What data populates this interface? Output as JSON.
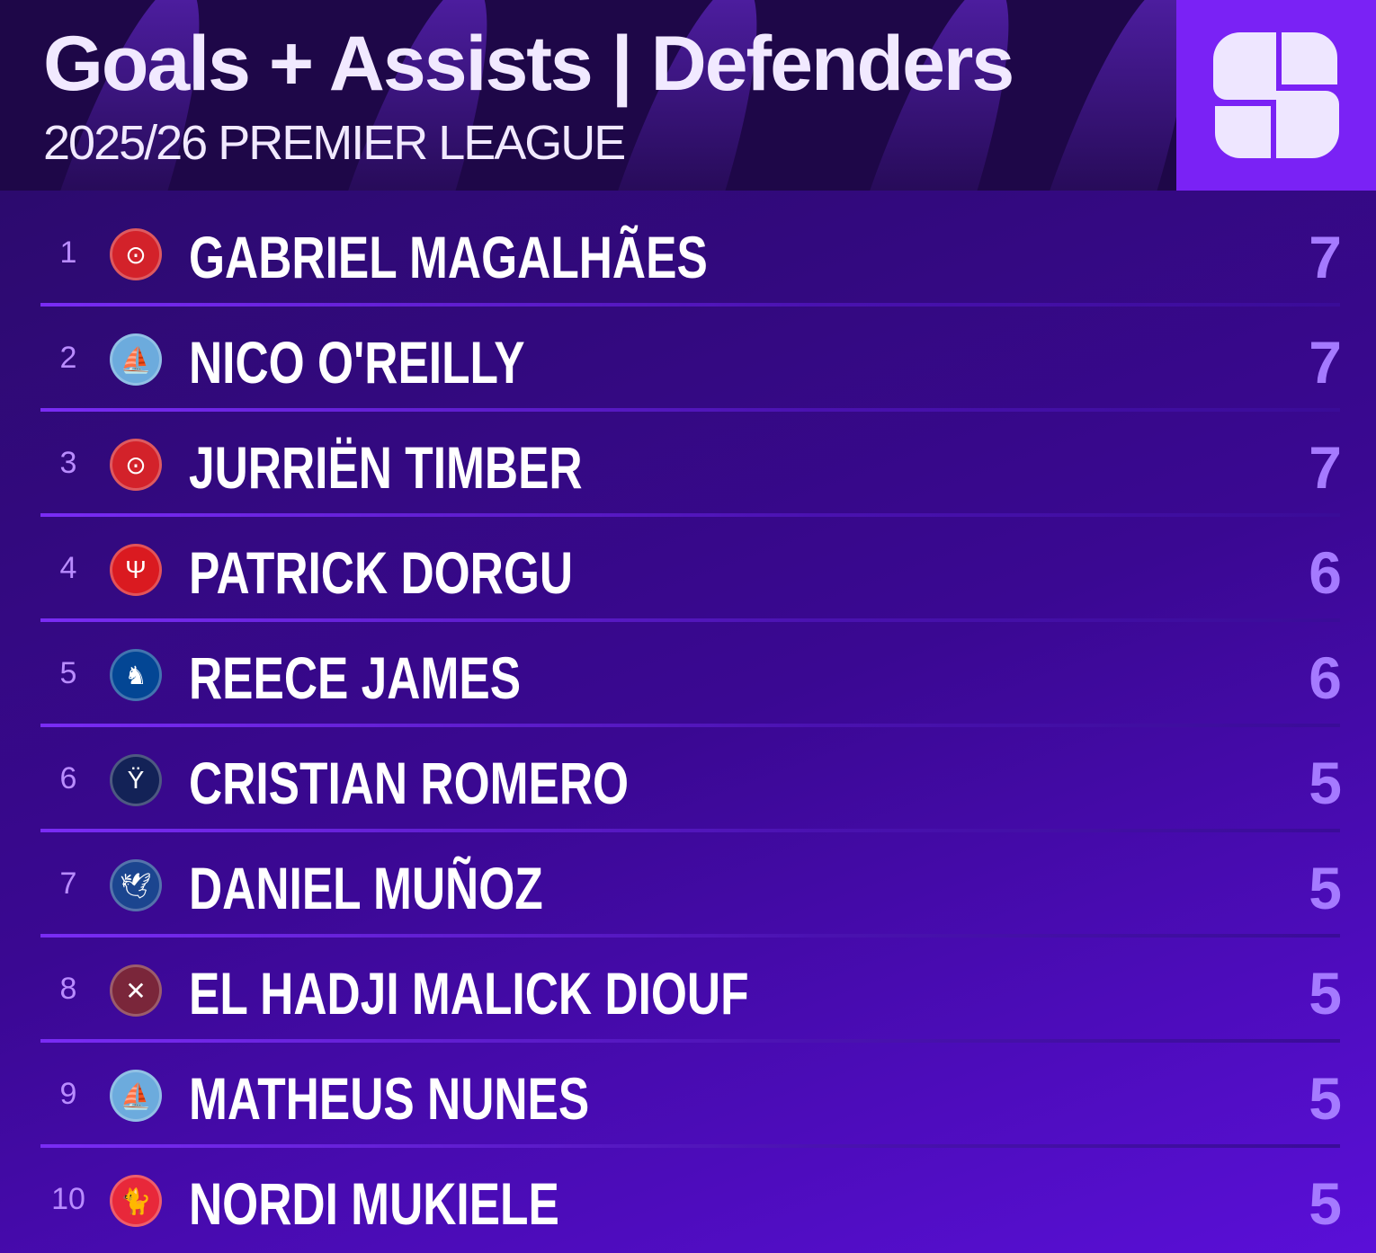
{
  "header": {
    "title": "Goals + Assists | Defenders",
    "subtitle": "2025/26 PREMIER LEAGUE",
    "logo": "S"
  },
  "rows": [
    {
      "rank": "1",
      "name": "GABRIEL MAGALHÃES",
      "value": "7",
      "badge_icon": "arsenal-cannon-icon",
      "badge_color": "#d3222a",
      "glyph": "⊙"
    },
    {
      "rank": "2",
      "name": "NICO O'REILLY",
      "value": "7",
      "badge_icon": "man-city-ship-icon",
      "badge_color": "#6cabdd",
      "glyph": "⛵"
    },
    {
      "rank": "3",
      "name": "JURRIËN TIMBER",
      "value": "7",
      "badge_icon": "arsenal-cannon-icon",
      "badge_color": "#d3222a",
      "glyph": "⊙"
    },
    {
      "rank": "4",
      "name": "PATRICK DORGU",
      "value": "6",
      "badge_icon": "man-utd-trident-icon",
      "badge_color": "#da1a20",
      "glyph": "Ψ"
    },
    {
      "rank": "5",
      "name": "REECE JAMES",
      "value": "6",
      "badge_icon": "chelsea-lion-icon",
      "badge_color": "#034694",
      "glyph": "♞"
    },
    {
      "rank": "6",
      "name": "CRISTIAN ROMERO",
      "value": "5",
      "badge_icon": "tottenham-cockerel-icon",
      "badge_color": "#132257",
      "glyph": "Ÿ"
    },
    {
      "rank": "7",
      "name": "DANIEL MUÑOZ",
      "value": "5",
      "badge_icon": "crystal-palace-eagle-icon",
      "badge_color": "#1b458f",
      "glyph": "🕊"
    },
    {
      "rank": "8",
      "name": "EL HADJI MALICK DIOUF",
      "value": "5",
      "badge_icon": "west-ham-hammers-icon",
      "badge_color": "#7a263a",
      "glyph": "✕"
    },
    {
      "rank": "9",
      "name": "MATHEUS NUNES",
      "value": "5",
      "badge_icon": "man-city-ship-icon",
      "badge_color": "#6cabdd",
      "glyph": "⛵"
    },
    {
      "rank": "10",
      "name": "NORDI MUKIELE",
      "value": "5",
      "badge_icon": "sunderland-cat-icon",
      "badge_color": "#e8283a",
      "glyph": "🐈"
    }
  ]
}
